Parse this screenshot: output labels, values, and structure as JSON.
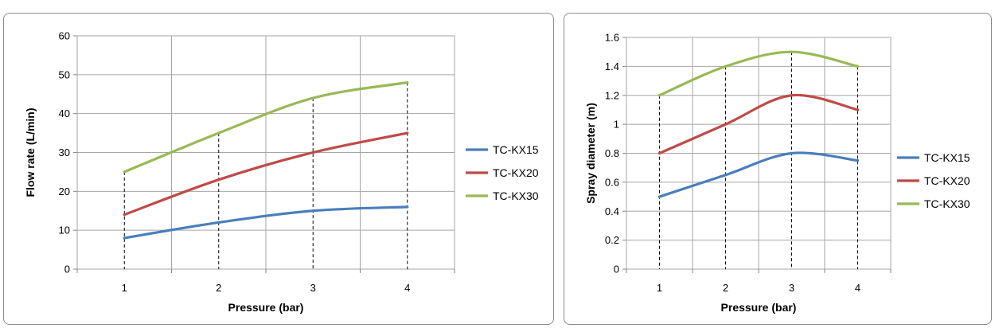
{
  "chart_data": [
    {
      "type": "line",
      "x": [
        1,
        2,
        3,
        4
      ],
      "xlabel": "Pressure (bar)",
      "ylabel": "Flow rate (L/min)",
      "ylim": [
        0,
        60
      ],
      "yticks": [
        0,
        10,
        20,
        30,
        40,
        50,
        60
      ],
      "grid": true,
      "legend_position": "right",
      "drop_lines": true,
      "series": [
        {
          "name": "TC-KX15",
          "color": "#4a7ebb",
          "values": [
            8,
            12,
            15,
            16
          ]
        },
        {
          "name": "TC-KX20",
          "color": "#be4b48",
          "values": [
            14,
            23,
            30,
            35
          ]
        },
        {
          "name": "TC-KX30",
          "color": "#98b954",
          "values": [
            25,
            35,
            44,
            48
          ]
        }
      ]
    },
    {
      "type": "line",
      "x": [
        1,
        2,
        3,
        4
      ],
      "xlabel": "Pressure (bar)",
      "ylabel": "Spray diameter (m)",
      "ylim": [
        0,
        1.6
      ],
      "yticks": [
        "0",
        "0.2",
        "0.4",
        "0.6",
        "0.8",
        "1",
        "1.2",
        "1.4",
        "1.6"
      ],
      "grid": true,
      "legend_position": "right",
      "drop_lines": true,
      "series": [
        {
          "name": "TC-KX15",
          "color": "#4a7ebb",
          "values": [
            0.5,
            0.65,
            0.8,
            0.75
          ]
        },
        {
          "name": "TC-KX20",
          "color": "#be4b48",
          "values": [
            0.8,
            1.0,
            1.2,
            1.1
          ]
        },
        {
          "name": "TC-KX30",
          "color": "#98b954",
          "values": [
            1.2,
            1.4,
            1.5,
            1.4
          ]
        }
      ]
    }
  ]
}
